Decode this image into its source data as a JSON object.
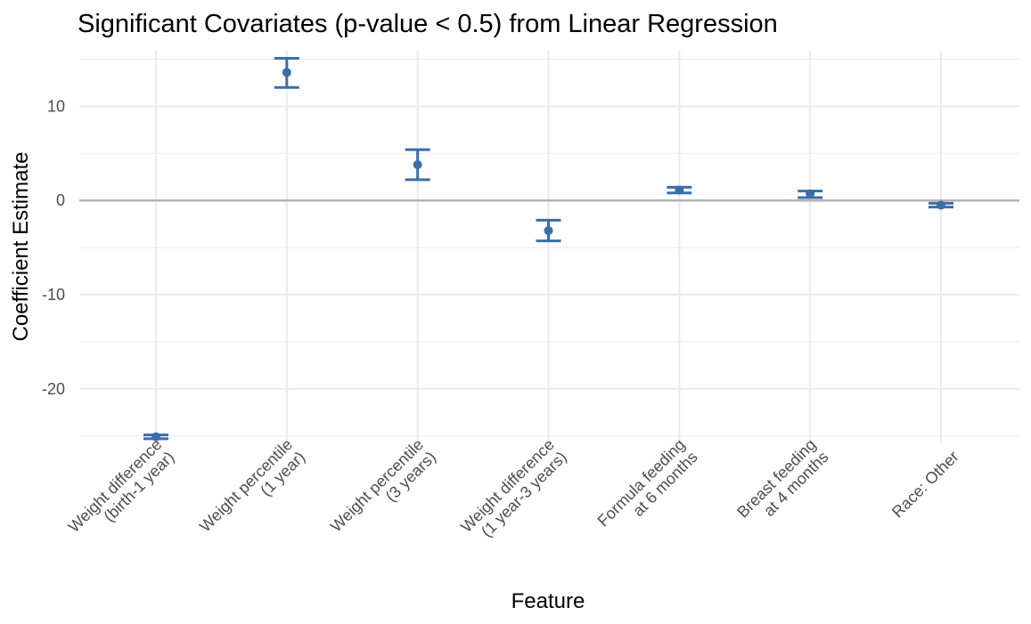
{
  "chart_data": {
    "type": "errorbar",
    "title": "Significant Covariates (p-value < 0.5) from Linear Regression",
    "xlabel": "Feature",
    "ylabel": "Coefficient Estimate",
    "ylim": [
      -25.6,
      15.9
    ],
    "yticks": [
      -20,
      -10,
      0,
      10
    ],
    "ytick_labels": [
      "-20",
      "-10",
      "0",
      "10"
    ],
    "grid": true,
    "reference_line_y": 0,
    "color": "#3a6ea8",
    "categories": [
      [
        "Weight difference",
        "(birth-1 year)"
      ],
      [
        "Weight percentile",
        "(1 year)"
      ],
      [
        "Weight percentile",
        "(3 years)"
      ],
      [
        "Weight difference",
        "(1 year-3 years)"
      ],
      [
        "Formula feeding",
        "at 6 months"
      ],
      [
        "Breast feeding",
        "at 4 months"
      ],
      [
        "Race: Other"
      ]
    ],
    "estimates": [
      -25.1,
      13.6,
      3.8,
      -3.2,
      1.1,
      0.7,
      -0.5
    ],
    "ci_low": [
      -25.3,
      12.0,
      2.2,
      -4.3,
      0.8,
      0.3,
      -0.7
    ],
    "ci_high": [
      -24.9,
      15.1,
      5.4,
      -2.1,
      1.4,
      1.0,
      -0.3
    ]
  }
}
